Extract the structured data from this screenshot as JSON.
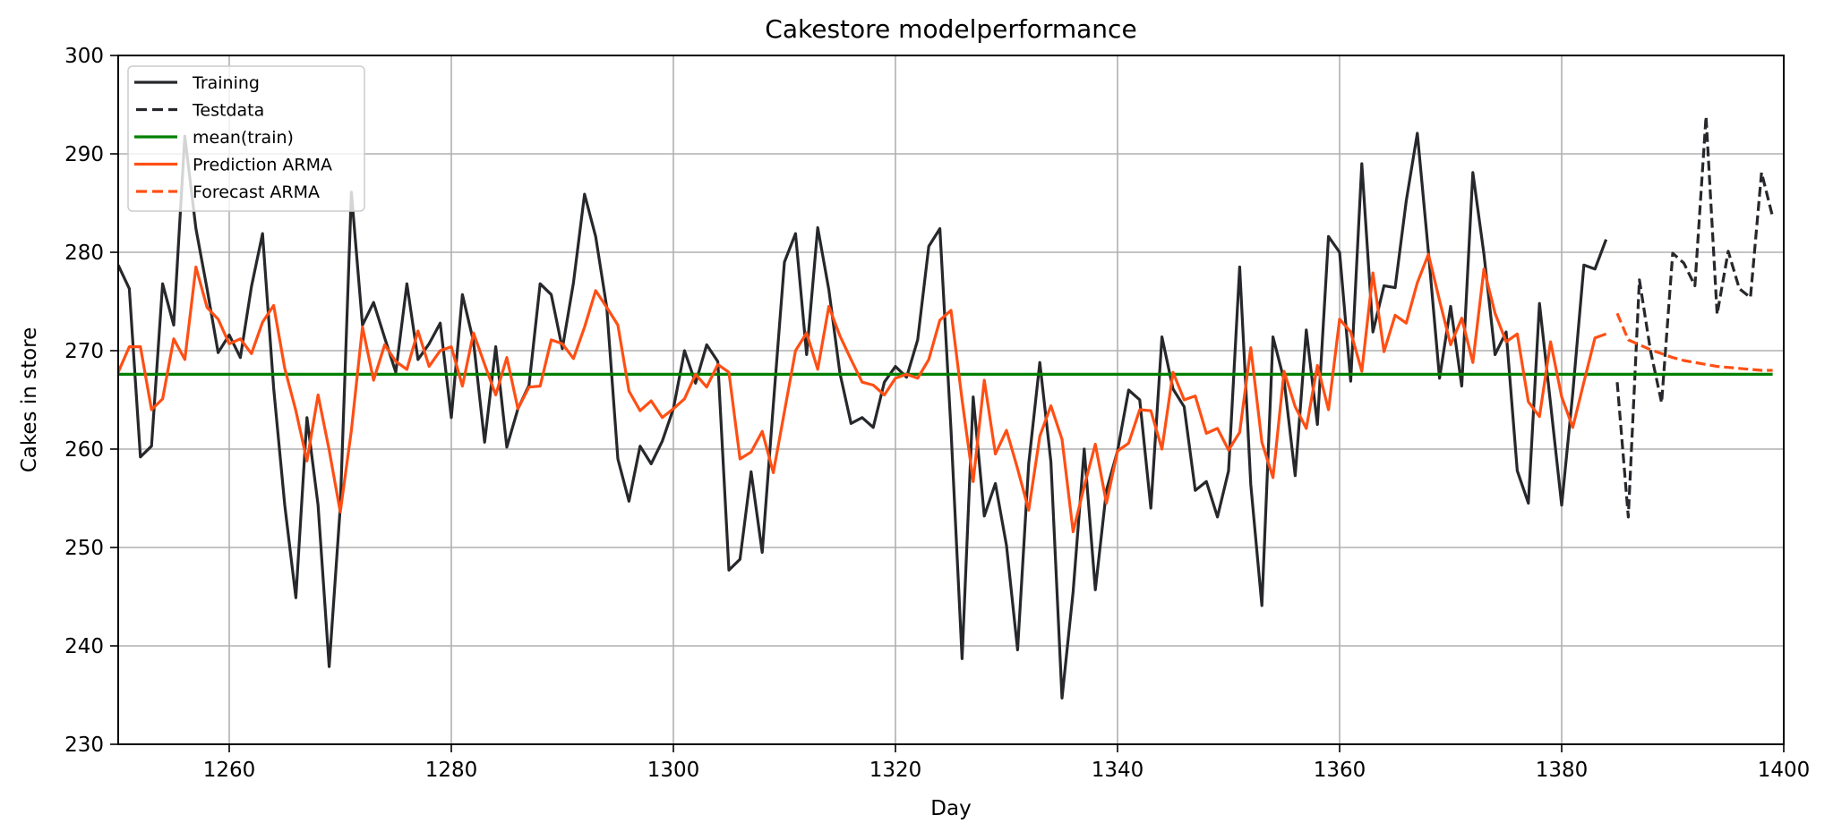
{
  "chart_data": {
    "type": "line",
    "title": "Cakestore modelperformance",
    "xlabel": "Day",
    "ylabel": "Cakes in store",
    "xlim": [
      1250,
      1400
    ],
    "ylim": [
      230,
      300
    ],
    "grid": true,
    "legend_position": "upper left",
    "x_ticks": [
      1260,
      1280,
      1300,
      1320,
      1340,
      1360,
      1380,
      1400
    ],
    "y_ticks": [
      230,
      240,
      250,
      260,
      270,
      280,
      290,
      300
    ],
    "series": [
      {
        "name": "Training",
        "style": "solid",
        "color": "#26282b",
        "x_start": 1250,
        "values": [
          278.7,
          276.3,
          259.2,
          260.3,
          276.8,
          272.6,
          291.8,
          282.4,
          276.3,
          269.8,
          271.6,
          269.3,
          276.5,
          281.9,
          266.2,
          254.3,
          244.9,
          263.2,
          254.3,
          237.9,
          254.1,
          286.1,
          272.6,
          274.9,
          271.3,
          267.8,
          276.8,
          269.1,
          270.7,
          272.8,
          263.2,
          275.7,
          270.9,
          260.7,
          270.4,
          260.2,
          264.1,
          266.5,
          276.8,
          275.7,
          270.2,
          276.9,
          285.9,
          281.6,
          274.4,
          259.0,
          254.7,
          260.3,
          258.5,
          260.8,
          264.1,
          270.0,
          266.7,
          270.6,
          268.9,
          247.7,
          248.8,
          257.7,
          249.5,
          264.5,
          279.0,
          281.9,
          269.6,
          282.5,
          276.2,
          267.7,
          262.6,
          263.2,
          262.2,
          266.8,
          268.4,
          267.3,
          271.1,
          280.6,
          282.4,
          262.0,
          238.7,
          265.3,
          253.2,
          256.5,
          250.2,
          239.6,
          258.5,
          268.8,
          258.7,
          234.7,
          245.5,
          260.0,
          245.7,
          255.8,
          259.8,
          266.0,
          265.0,
          254.0,
          271.4,
          266.1,
          264.3,
          255.8,
          256.7,
          253.1,
          257.8,
          278.5,
          256.4,
          244.1,
          271.4,
          267.0,
          257.3,
          272.1,
          262.5,
          281.6,
          280.0,
          266.9,
          289.0,
          271.9,
          276.6,
          276.4,
          285.2,
          292.1,
          280.0,
          267.2,
          274.5,
          266.4,
          288.1,
          279.8,
          269.6,
          271.9,
          257.8,
          254.5,
          274.8,
          264.6,
          254.3,
          265.7,
          278.7,
          278.3,
          281.3
        ]
      },
      {
        "name": "Testdata",
        "style": "dashed",
        "color": "#26282b",
        "x_start": 1385,
        "values": [
          266.8,
          253.1,
          277.2,
          270.0,
          264.7,
          279.9,
          278.9,
          276.6,
          293.8,
          273.7,
          280.1,
          276.3,
          275.4,
          288.1,
          283.6
        ]
      },
      {
        "name": "mean(train)",
        "style": "solid",
        "color": "#008000",
        "x_range": [
          1250,
          1399
        ],
        "value": 267.6
      },
      {
        "name": "Prediction ARMA",
        "style": "solid",
        "color": "#ff4f14",
        "x_start": 1250,
        "values": [
          267.8,
          270.4,
          270.4,
          264.0,
          265.1,
          271.2,
          269.1,
          278.5,
          274.4,
          273.2,
          270.7,
          271.2,
          269.7,
          272.9,
          274.6,
          268.2,
          263.9,
          258.8,
          265.5,
          259.9,
          253.6,
          261.9,
          272.4,
          267.0,
          270.6,
          268.9,
          268.1,
          272.0,
          268.4,
          270.0,
          270.4,
          266.4,
          271.8,
          268.6,
          265.5,
          269.3,
          264.1,
          266.3,
          266.4,
          271.1,
          270.7,
          269.2,
          272.4,
          276.1,
          274.4,
          272.6,
          265.9,
          263.9,
          264.9,
          263.2,
          264.1,
          265.1,
          267.6,
          266.3,
          268.6,
          267.8,
          259.0,
          259.7,
          261.8,
          257.6,
          263.8,
          270.0,
          271.8,
          268.1,
          274.5,
          271.5,
          269.1,
          266.8,
          266.5,
          265.5,
          267.2,
          267.6,
          267.2,
          269.1,
          273.1,
          274.1,
          265.0,
          256.7,
          267.0,
          259.5,
          261.9,
          258.0,
          253.8,
          261.3,
          264.4,
          261.0,
          251.6,
          256.2,
          260.5,
          254.5,
          259.8,
          260.6,
          264.0,
          263.9,
          260.0,
          267.8,
          265.0,
          265.4,
          261.6,
          262.1,
          259.9,
          261.7,
          270.3,
          260.7,
          257.1,
          267.9,
          264.3,
          262.1,
          268.5,
          264.0,
          273.2,
          271.9,
          267.9,
          277.9,
          269.9,
          273.6,
          272.8,
          276.9,
          279.8,
          275.1,
          270.6,
          273.3,
          268.8,
          278.3,
          273.8,
          270.9,
          271.7,
          264.8,
          263.3,
          270.9,
          265.3,
          262.2,
          266.8,
          271.3,
          271.7
        ]
      },
      {
        "name": "Forecast ARMA",
        "style": "dashed",
        "color": "#ff4f14",
        "x_start": 1385,
        "values": [
          273.8,
          271.1,
          270.6,
          270.1,
          269.7,
          269.3,
          269.0,
          268.8,
          268.6,
          268.4,
          268.3,
          268.2,
          268.1,
          268.0,
          268.0
        ]
      }
    ]
  },
  "colors": {
    "grid": "#b0b0b0",
    "legend_border": "#cccccc"
  }
}
